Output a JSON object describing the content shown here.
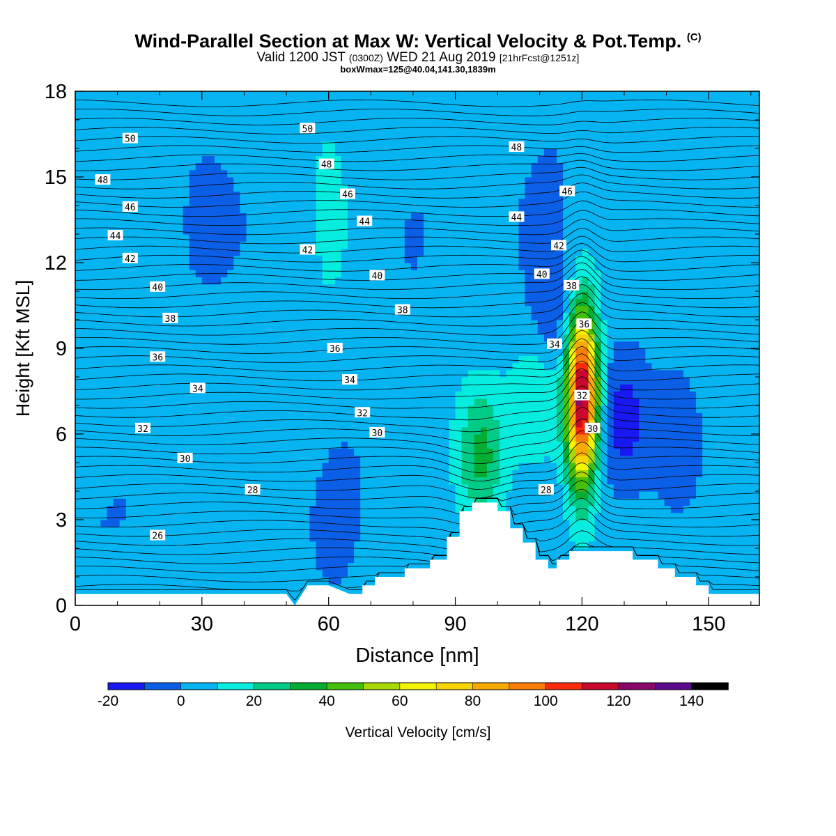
{
  "title": {
    "main": "Wind-Parallel Section at Max W: Vertical Velocity & Pot.Temp.",
    "copyright": "(C)",
    "valid_prefix": "Valid 1200 JST",
    "valid_zulu": "(0300Z)",
    "valid_date": "WED 21 Aug 2019",
    "forecast": "[21hrFcst@1251z]",
    "box": "boxWmax=125@40.04,141.30,1839m"
  },
  "colors": {
    "wmap": [
      "#1818f0",
      "#0a5fe6",
      "#06b4f2",
      "#06ecde",
      "#00cc88",
      "#05ae32",
      "#44c00a",
      "#aad806",
      "#f4f404",
      "#f8d404",
      "#f8aa04",
      "#f87c08",
      "#f82c0a",
      "#c8082c",
      "#8a086a",
      "#5a0a8a"
    ],
    "terrain": "#ffffff",
    "isentrope": "#000000"
  },
  "chart_data": {
    "type": "heatmap",
    "title": "Wind-Parallel Section at Max W: Vertical Velocity & Pot.Temp.",
    "xlabel": "Distance [nm]",
    "ylabel": "Height [Kft MSL]",
    "xlim": [
      0,
      162
    ],
    "ylim": [
      0,
      18
    ],
    "xticks": [
      0,
      30,
      60,
      90,
      120,
      150
    ],
    "yticks": [
      0,
      3,
      6,
      9,
      12,
      15,
      18
    ],
    "colorbar": {
      "label": "Vertical Velocity [cm/s]",
      "levels": [
        -20,
        -10,
        0,
        10,
        20,
        30,
        40,
        50,
        60,
        70,
        80,
        90,
        100,
        110,
        120,
        130,
        140,
        150
      ],
      "tick_labels": [
        "-20",
        "0",
        "20",
        "40",
        "60",
        "80",
        "100",
        "120",
        "140"
      ]
    },
    "terrain_profile": [
      [
        0,
        0.4
      ],
      [
        50,
        0.4
      ],
      [
        52,
        0
      ],
      [
        55,
        0.7
      ],
      [
        60,
        0.7
      ],
      [
        65,
        0.4
      ],
      [
        68,
        0.4
      ],
      [
        68,
        0.7
      ],
      [
        71,
        0.7
      ],
      [
        71,
        1.0
      ],
      [
        78,
        1.0
      ],
      [
        78,
        1.3
      ],
      [
        84,
        1.3
      ],
      [
        84,
        1.6
      ],
      [
        88,
        1.6
      ],
      [
        88,
        2.4
      ],
      [
        91,
        2.4
      ],
      [
        91,
        3.3
      ],
      [
        94,
        3.3
      ],
      [
        94,
        3.6
      ],
      [
        100,
        3.6
      ],
      [
        100,
        3.3
      ],
      [
        103,
        3.3
      ],
      [
        103,
        2.7
      ],
      [
        106,
        2.7
      ],
      [
        106,
        2.2
      ],
      [
        109,
        2.2
      ],
      [
        109,
        1.6
      ],
      [
        112,
        1.6
      ],
      [
        112,
        1.3
      ],
      [
        114,
        1.3
      ],
      [
        114,
        1.6
      ],
      [
        117,
        1.6
      ],
      [
        117,
        1.9
      ],
      [
        132,
        1.9
      ],
      [
        132,
        1.6
      ],
      [
        138,
        1.6
      ],
      [
        138,
        1.3
      ],
      [
        142,
        1.3
      ],
      [
        142,
        1.0
      ],
      [
        147,
        1.0
      ],
      [
        147,
        0.7
      ],
      [
        150,
        0.7
      ],
      [
        150,
        0.4
      ],
      [
        162,
        0.4
      ]
    ],
    "w_cores": [
      {
        "x": 120,
        "y": 7.3,
        "peak": 125
      },
      {
        "x": 96,
        "y": 5.2,
        "peak": 28
      },
      {
        "x": 110,
        "y": 7.5,
        "peak": 18
      },
      {
        "x": 113,
        "y": 9.6,
        "peak": -14
      },
      {
        "x": 130,
        "y": 6.5,
        "peak": -16
      },
      {
        "x": 143,
        "y": 5.8,
        "peak": -14
      },
      {
        "x": 62,
        "y": 2.8,
        "peak": -12
      }
    ],
    "isentrope_labels": [
      {
        "value": "26",
        "x": 19.5,
        "y": 2.45
      },
      {
        "value": "28",
        "x": 42,
        "y": 4.05
      },
      {
        "value": "28",
        "x": 111.5,
        "y": 4.05
      },
      {
        "value": "30",
        "x": 26,
        "y": 5.15
      },
      {
        "value": "30",
        "x": 71.5,
        "y": 6.05
      },
      {
        "value": "30",
        "x": 122.5,
        "y": 6.2
      },
      {
        "value": "32",
        "x": 16,
        "y": 6.2
      },
      {
        "value": "32",
        "x": 68,
        "y": 6.75
      },
      {
        "value": "32",
        "x": 120,
        "y": 7.35
      },
      {
        "value": "34",
        "x": 29,
        "y": 7.6
      },
      {
        "value": "34",
        "x": 65,
        "y": 7.9
      },
      {
        "value": "34",
        "x": 113.5,
        "y": 9.15
      },
      {
        "value": "36",
        "x": 19.5,
        "y": 8.7
      },
      {
        "value": "36",
        "x": 61.5,
        "y": 9.0
      },
      {
        "value": "36",
        "x": 120.5,
        "y": 9.85
      },
      {
        "value": "38",
        "x": 22.5,
        "y": 10.05
      },
      {
        "value": "38",
        "x": 77.5,
        "y": 10.35
      },
      {
        "value": "38",
        "x": 117.5,
        "y": 11.2
      },
      {
        "value": "40",
        "x": 19.5,
        "y": 11.15
      },
      {
        "value": "40",
        "x": 71.5,
        "y": 11.55
      },
      {
        "value": "40",
        "x": 110.5,
        "y": 11.6
      },
      {
        "value": "42",
        "x": 13,
        "y": 12.15
      },
      {
        "value": "42",
        "x": 55,
        "y": 12.45
      },
      {
        "value": "42",
        "x": 114.5,
        "y": 12.6
      },
      {
        "value": "44",
        "x": 9.5,
        "y": 12.95
      },
      {
        "value": "44",
        "x": 68.5,
        "y": 13.45
      },
      {
        "value": "44",
        "x": 104.5,
        "y": 13.6
      },
      {
        "value": "46",
        "x": 13,
        "y": 13.95
      },
      {
        "value": "46",
        "x": 64.5,
        "y": 14.4
      },
      {
        "value": "46",
        "x": 116.5,
        "y": 14.5
      },
      {
        "value": "48",
        "x": 6.5,
        "y": 14.9
      },
      {
        "value": "48",
        "x": 59.5,
        "y": 15.45
      },
      {
        "value": "48",
        "x": 104.5,
        "y": 16.05
      },
      {
        "value": "50",
        "x": 13,
        "y": 16.35
      },
      {
        "value": "50",
        "x": 55,
        "y": 16.7
      }
    ]
  }
}
